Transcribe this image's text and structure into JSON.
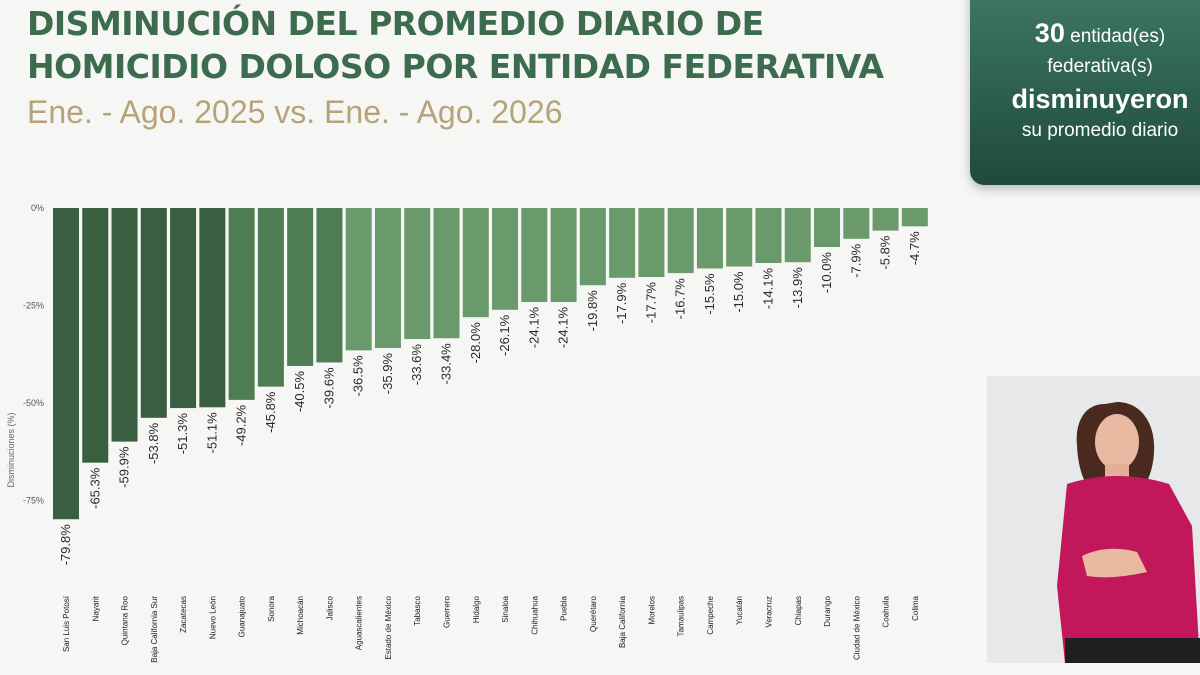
{
  "header": {
    "title_line1": "DISMINUCIÓN DEL PROMEDIO DIARIO DE",
    "title_line2": "HOMICIDIO DOLOSO POR ENTIDAD FEDERATIVA",
    "subtitle": "Ene. - Ago. 2025 vs. Ene. - Ago. 2026"
  },
  "summary": {
    "count": "30",
    "line1_rest": "entidad(es)",
    "line2": "federativa(s)",
    "line3": "disminuyeron",
    "line4": "su promedio diario"
  },
  "colors": {
    "dark": "#3a5f40",
    "mid": "#4e7d54",
    "light": "#6a9a6c",
    "title": "#3d6b4e",
    "subtitle": "#b7a37a"
  },
  "chart_data": {
    "type": "bar",
    "ylabel": "Disminuciones (%)",
    "ylim": [
      -80,
      0
    ],
    "yticks": [
      0,
      -25,
      -50,
      -75
    ],
    "ytick_labels": [
      "0%",
      "-25%",
      "-50%",
      "-75%"
    ],
    "categories": [
      "San Luis Potosí",
      "Nayarit",
      "Quintana Roo",
      "Baja California Sur",
      "Zacatecas",
      "Nuevo León",
      "Guanajuato",
      "Sonora",
      "Michoacán",
      "Jalisco",
      "Aguascalientes",
      "Estado de México",
      "Tabasco",
      "Guerrero",
      "Hidalgo",
      "Sinaloa",
      "Chihuahua",
      "Puebla",
      "Querétaro",
      "Baja California",
      "Morelos",
      "Tamaulipas",
      "Campeche",
      "Yucatán",
      "Veracruz",
      "Chiapas",
      "Durango",
      "Ciudad de México",
      "Coahuila",
      "Colima"
    ],
    "values": [
      -79.8,
      -65.3,
      -59.9,
      -53.8,
      -51.3,
      -51.1,
      -49.2,
      -45.8,
      -40.5,
      -39.6,
      -36.5,
      -35.9,
      -33.6,
      -33.4,
      -28.0,
      -26.1,
      -24.1,
      -24.1,
      -19.8,
      -17.9,
      -17.7,
      -16.7,
      -15.5,
      -15.0,
      -14.1,
      -13.9,
      -10.0,
      -7.9,
      -5.8,
      -4.7
    ],
    "data_labels": [
      "-79.8%",
      "-65.3%",
      "-59.9%",
      "-53.8%",
      "-51.3%",
      "-51.1%",
      "-49.2%",
      "-45.8%",
      "-40.5%",
      "-39.6%",
      "-36.5%",
      "-35.9%",
      "-33.6%",
      "-33.4%",
      "-28.0%",
      "-26.1%",
      "-24.1%",
      "-24.1%",
      "-19.8%",
      "-17.9%",
      "-17.7%",
      "-16.7%",
      "-15.5%",
      "-15.0%",
      "-14.1%",
      "-13.9%",
      "-10.0%",
      "-7.9%",
      "-5.8%",
      "-4.7%"
    ]
  }
}
